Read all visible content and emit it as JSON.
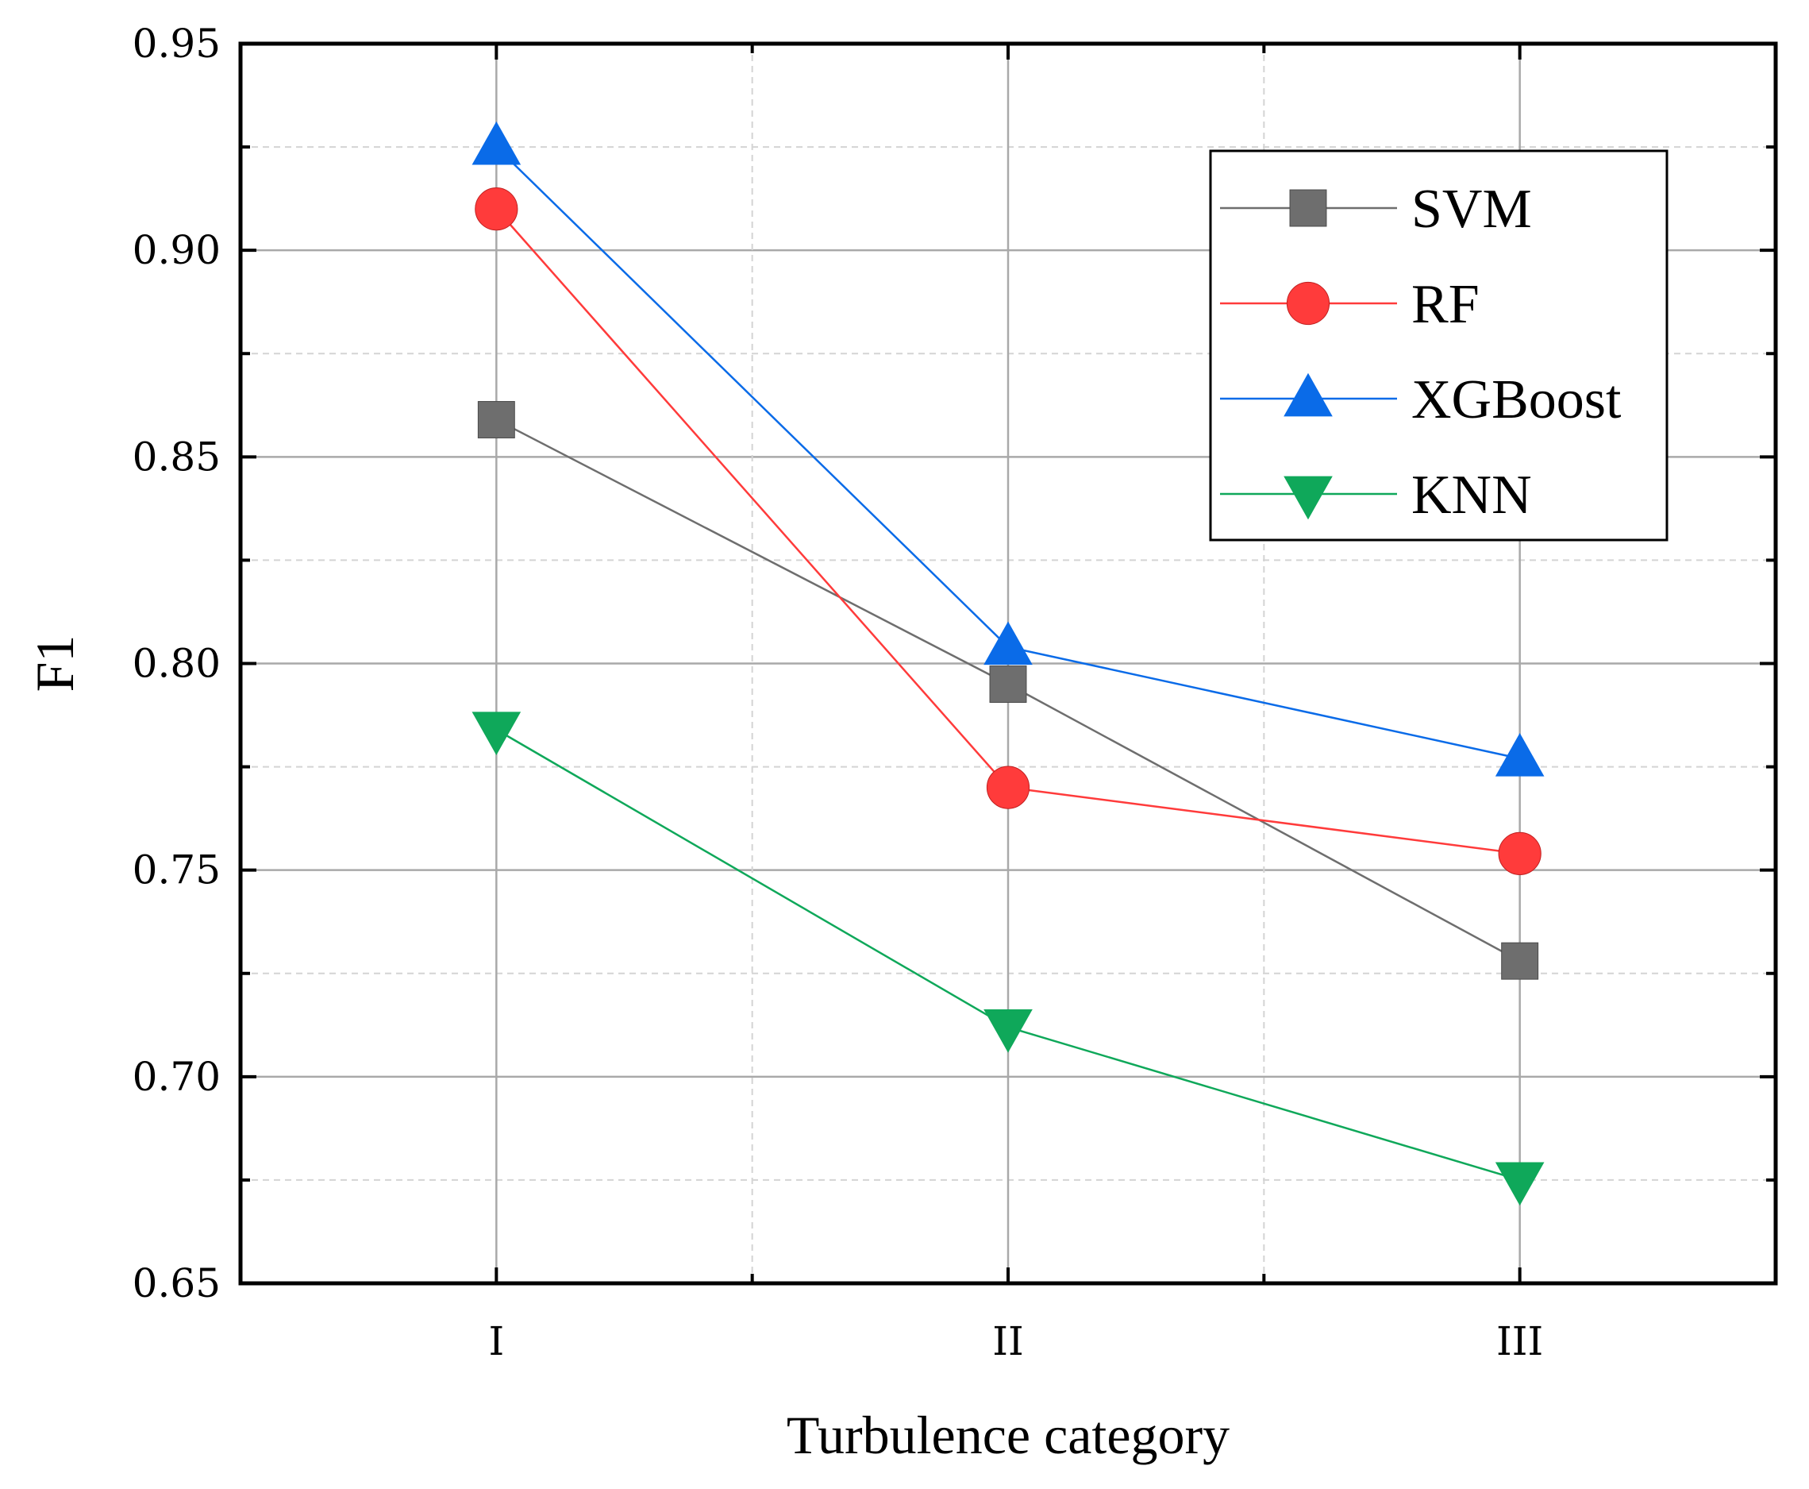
{
  "chart_data": {
    "type": "line",
    "title": "",
    "xlabel": "Turbulence category",
    "ylabel": "F1",
    "categories": [
      "I",
      "II",
      "III"
    ],
    "ylim": [
      0.65,
      0.95
    ],
    "yticks": [
      "0.65",
      "0.70",
      "0.75",
      "0.80",
      "0.85",
      "0.90",
      "0.95"
    ],
    "grid": true,
    "legend_position": "top-right",
    "series": [
      {
        "name": "SVM",
        "values": [
          0.859,
          0.795,
          0.728
        ],
        "color": "#6e6e6e",
        "marker": "square"
      },
      {
        "name": "RF",
        "values": [
          0.91,
          0.77,
          0.754
        ],
        "color": "#ff3b3b",
        "marker": "circle"
      },
      {
        "name": "XGBoost",
        "values": [
          0.925,
          0.804,
          0.777
        ],
        "color": "#0a6be8",
        "marker": "triangle-up"
      },
      {
        "name": "KNN",
        "values": [
          0.784,
          0.712,
          0.675
        ],
        "color": "#0fa85a",
        "marker": "triangle-down"
      }
    ]
  }
}
